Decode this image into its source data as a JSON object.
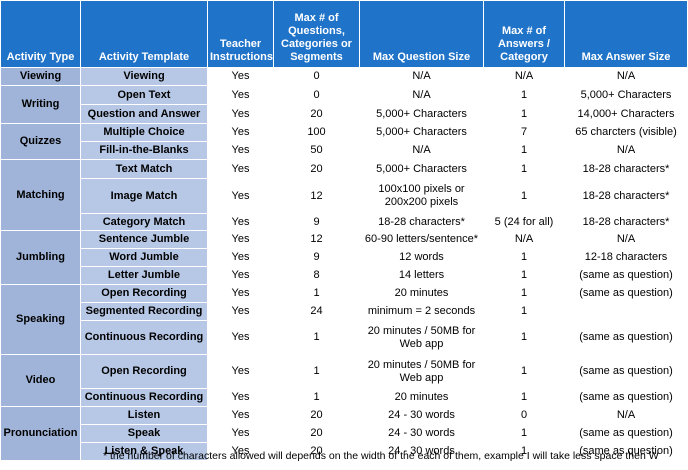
{
  "headers": [
    "Activity Type",
    "Activity Template",
    "Teacher Instructions",
    "Max # of Questions, Categories or Segments",
    "Max Question Size",
    "Max # of Answers / Category",
    "Max Answer Size"
  ],
  "groups": [
    {
      "type": "Viewing",
      "rows": [
        {
          "template": "Viewing",
          "teacher": "Yes",
          "max_q": "0",
          "q_size": "N/A",
          "max_a": "N/A",
          "a_size": "N/A"
        }
      ]
    },
    {
      "type": "Writing",
      "rows": [
        {
          "template": "Open Text",
          "teacher": "Yes",
          "max_q": "0",
          "q_size": "N/A",
          "max_a": "1",
          "a_size": "5,000+ Characters"
        },
        {
          "template": "Question and Answer",
          "teacher": "Yes",
          "max_q": "20",
          "q_size": "5,000+ Characters",
          "max_a": "1",
          "a_size": "14,000+ Characters"
        }
      ]
    },
    {
      "type": "Quizzes",
      "rows": [
        {
          "template": "Multiple Choice",
          "teacher": "Yes",
          "max_q": "100",
          "q_size": "5,000+ Characters",
          "max_a": "7",
          "a_size": "65 charcters (visible)"
        },
        {
          "template": "Fill-in-the-Blanks",
          "teacher": "Yes",
          "max_q": "50",
          "q_size": "N/A",
          "max_a": "1",
          "a_size": "N/A"
        }
      ]
    },
    {
      "type": "Matching",
      "rows": [
        {
          "template": "Text Match",
          "teacher": "Yes",
          "max_q": "20",
          "q_size": "5,000+ Characters",
          "max_a": "1",
          "a_size": "18-28 characters*"
        },
        {
          "template": "Image Match",
          "teacher": "Yes",
          "max_q": "12",
          "q_size": "100x100 pixels or 200x200 pixels",
          "max_a": "1",
          "a_size": "18-28 characters*"
        },
        {
          "template": "Category Match",
          "teacher": "Yes",
          "max_q": "9",
          "q_size": "18-28 characters*",
          "max_a": "5 (24 for all)",
          "a_size": "18-28 characters*"
        }
      ]
    },
    {
      "type": "Jumbling",
      "rows": [
        {
          "template": "Sentence Jumble",
          "teacher": "Yes",
          "max_q": "12",
          "q_size": "60-90 letters/sentence*",
          "max_a": "N/A",
          "a_size": "N/A"
        },
        {
          "template": "Word Jumble",
          "teacher": "Yes",
          "max_q": "9",
          "q_size": "12 words",
          "max_a": "1",
          "a_size": "12-18 characters"
        },
        {
          "template": "Letter Jumble",
          "teacher": "Yes",
          "max_q": "8",
          "q_size": "14 letters",
          "max_a": "1",
          "a_size": "(same as question)"
        }
      ]
    },
    {
      "type": "Speaking",
      "rows": [
        {
          "template": "Open Recording",
          "teacher": "Yes",
          "max_q": "1",
          "q_size": "20 minutes",
          "max_a": "1",
          "a_size": "(same as question)"
        },
        {
          "template": "Segmented Recording",
          "teacher": "Yes",
          "max_q": "24",
          "q_size": "minimum = 2 seconds",
          "max_a": "1",
          "a_size": ""
        },
        {
          "template": "Continuous Recording",
          "teacher": "Yes",
          "max_q": "1",
          "q_size": "20 minutes / 50MB for Web app",
          "max_a": "1",
          "a_size": "(same as question)"
        }
      ]
    },
    {
      "type": "Video",
      "rows": [
        {
          "template": "Open Recording",
          "teacher": "Yes",
          "max_q": "1",
          "q_size": "20 minutes / 50MB for Web app",
          "max_a": "1",
          "a_size": "(same as question)"
        },
        {
          "template": "Continuous Recording",
          "teacher": "Yes",
          "max_q": "1",
          "q_size": "20 minutes",
          "max_a": "1",
          "a_size": "(same as question)"
        }
      ]
    },
    {
      "type": "Pronunciation",
      "rows": [
        {
          "template": "Listen",
          "teacher": "Yes",
          "max_q": "20",
          "q_size": "24 - 30 words",
          "max_a": "0",
          "a_size": "N/A"
        },
        {
          "template": "Speak",
          "teacher": "Yes",
          "max_q": "20",
          "q_size": "24 - 30 words",
          "max_a": "1",
          "a_size": "(same as question)"
        },
        {
          "template": "Listen & Speak",
          "teacher": "Yes",
          "max_q": "20",
          "q_size": "24 - 30 words",
          "max_a": "1",
          "a_size": "(same as question)"
        }
      ]
    }
  ],
  "footnote": "* the number of characters allowed will depends on the width of the each of them, example I will take less space then W",
  "colors": {
    "header": "#1f73c8",
    "type_col": "#9fb4d8",
    "template_col": "#b7c8e6"
  }
}
